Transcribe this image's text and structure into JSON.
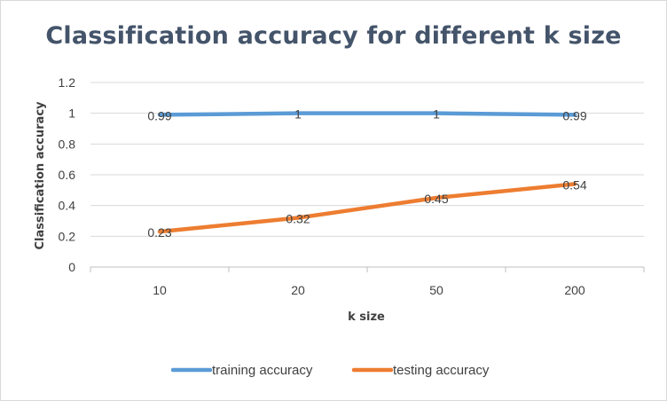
{
  "chart_data": {
    "type": "line",
    "title": "Classification  accuracy for different k size",
    "xlabel": "k size",
    "ylabel": "Classification accuracy",
    "categories": [
      "10",
      "20",
      "50",
      "200"
    ],
    "ylim": [
      0,
      1.2
    ],
    "yticks": [
      "0",
      "0.2",
      "0.4",
      "0.6",
      "0.8",
      "1",
      "1.2"
    ],
    "grid": true,
    "legend_position": "bottom",
    "series": [
      {
        "name": "training accuracy",
        "color": "#5b9bd5",
        "values": [
          0.99,
          1,
          1,
          0.99
        ],
        "labels": [
          "0.99",
          "1",
          "1",
          "0.99"
        ]
      },
      {
        "name": "testing accuracy",
        "color": "#ed7d31",
        "values": [
          0.23,
          0.32,
          0.45,
          0.54
        ],
        "labels": [
          "0.23",
          "0.32",
          "0.45",
          "0.54"
        ]
      }
    ]
  }
}
